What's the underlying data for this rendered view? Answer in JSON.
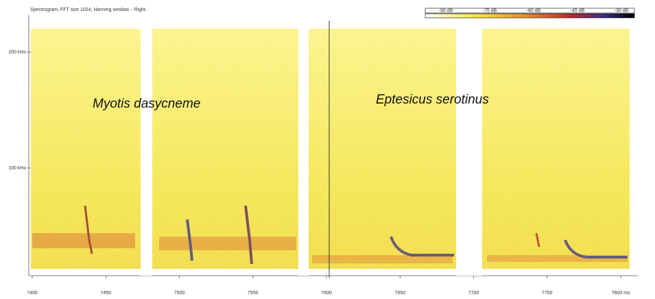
{
  "header": {
    "title": "Spectrogram, FFT size 1024, Hanning window. - Right."
  },
  "colorbar": {
    "labels": [
      "-90 dB",
      "-75 dB",
      "-60 dB",
      "-45 dB",
      "-30 dB"
    ]
  },
  "axes": {
    "y_labels": [
      "200 kHz",
      "100 kHz"
    ],
    "x_labels": [
      "7400",
      "7450",
      "7500",
      "7550",
      "7600",
      "7650",
      "7700",
      "7750",
      "7800 ms"
    ]
  },
  "annotations": [
    "Myotis dasycneme",
    "Eptesicus serotinus"
  ]
}
